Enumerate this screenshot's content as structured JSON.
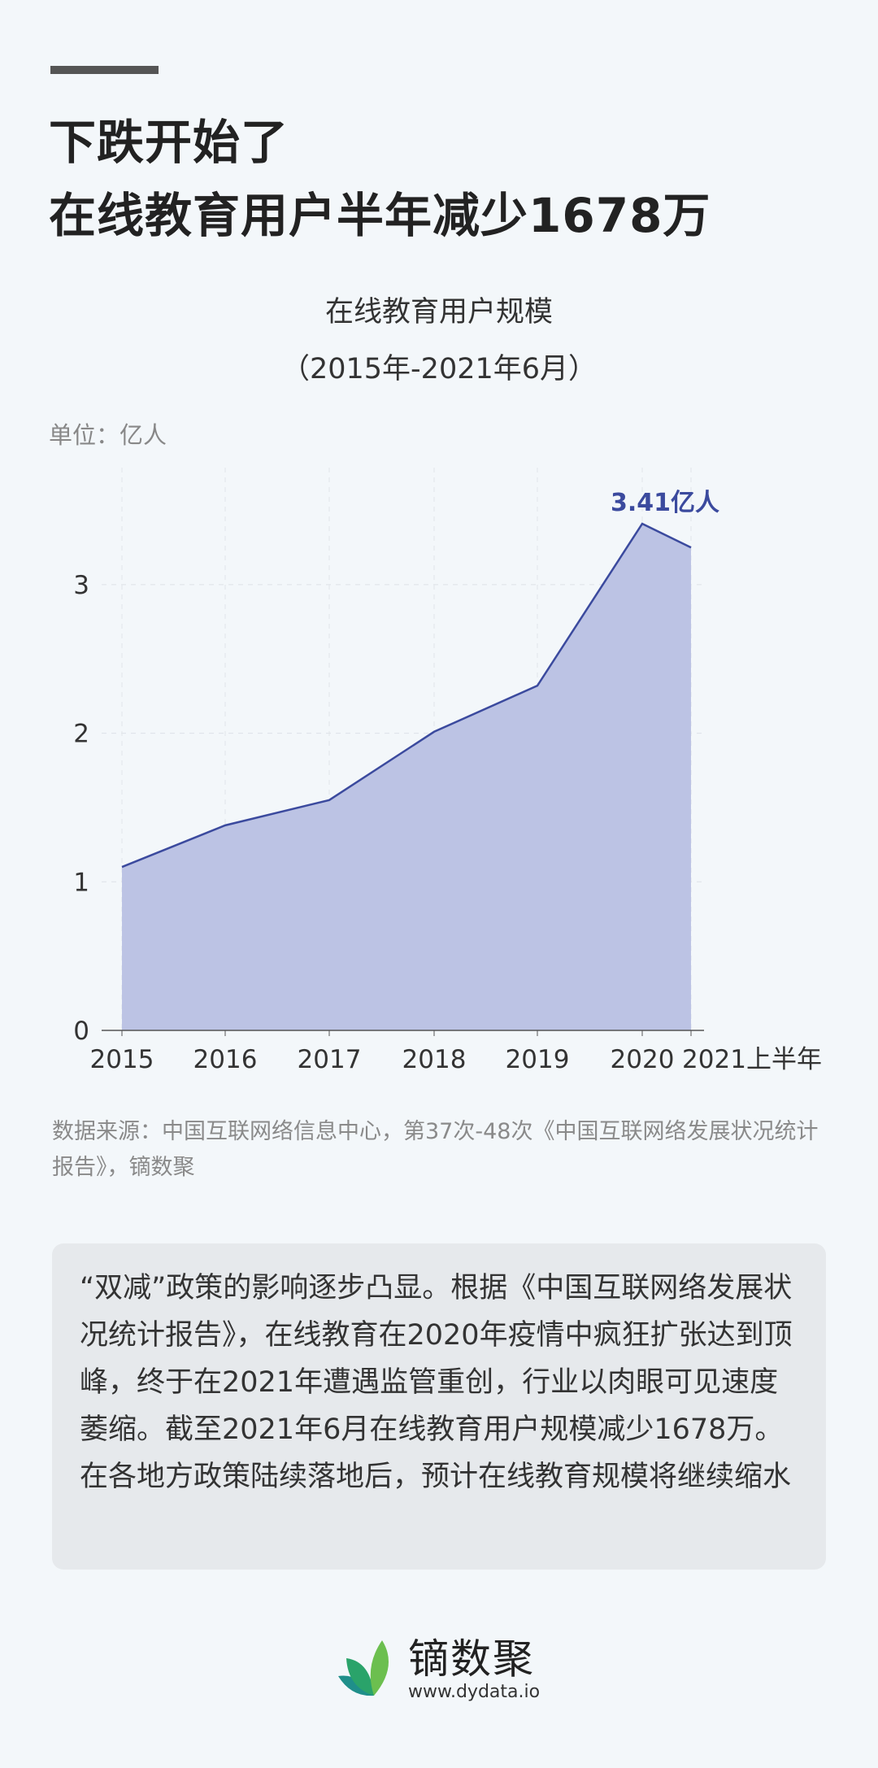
{
  "header": {
    "title_line1": "下跌开始了",
    "title_line2": "在线教育用户半年减少1678万"
  },
  "chart_data": {
    "type": "area",
    "title": "在线教育用户规模",
    "subtitle": "（2015年-2021年6月）",
    "unit_label": "单位：亿人",
    "categories": [
      "2015",
      "2016",
      "2017",
      "2018",
      "2019",
      "2020",
      "2021上半年"
    ],
    "values": [
      1.1,
      1.38,
      1.55,
      2.01,
      2.32,
      3.41,
      3.25
    ],
    "yticks": [
      "0",
      "1",
      "2",
      "3"
    ],
    "ylim": [
      0,
      3.6
    ],
    "annotation": "3.41亿人",
    "grid": "dashed",
    "colors": {
      "line": "#3b4a9e",
      "fill": "#bcc3e4",
      "annotation": "#3b4a9e"
    }
  },
  "source": "数据来源：中国互联网络信息中心，第37次-48次《中国互联网络发展状况统计报告》，镝数聚",
  "summary": "“双减”政策的影响逐步凸显。根据《中国互联网络发展状况统计报告》，在线教育在2020年疫情中疯狂扩张达到顶峰，终于在2021年遭遇监管重创，行业以肉眼可见速度萎缩。截至2021年6月在线教育用户规模减少1678万。在各地方政策陆续落地后，预计在线教育规模将继续缩水",
  "footer": {
    "brand": "镝数聚",
    "url": "www.dydata.io"
  }
}
